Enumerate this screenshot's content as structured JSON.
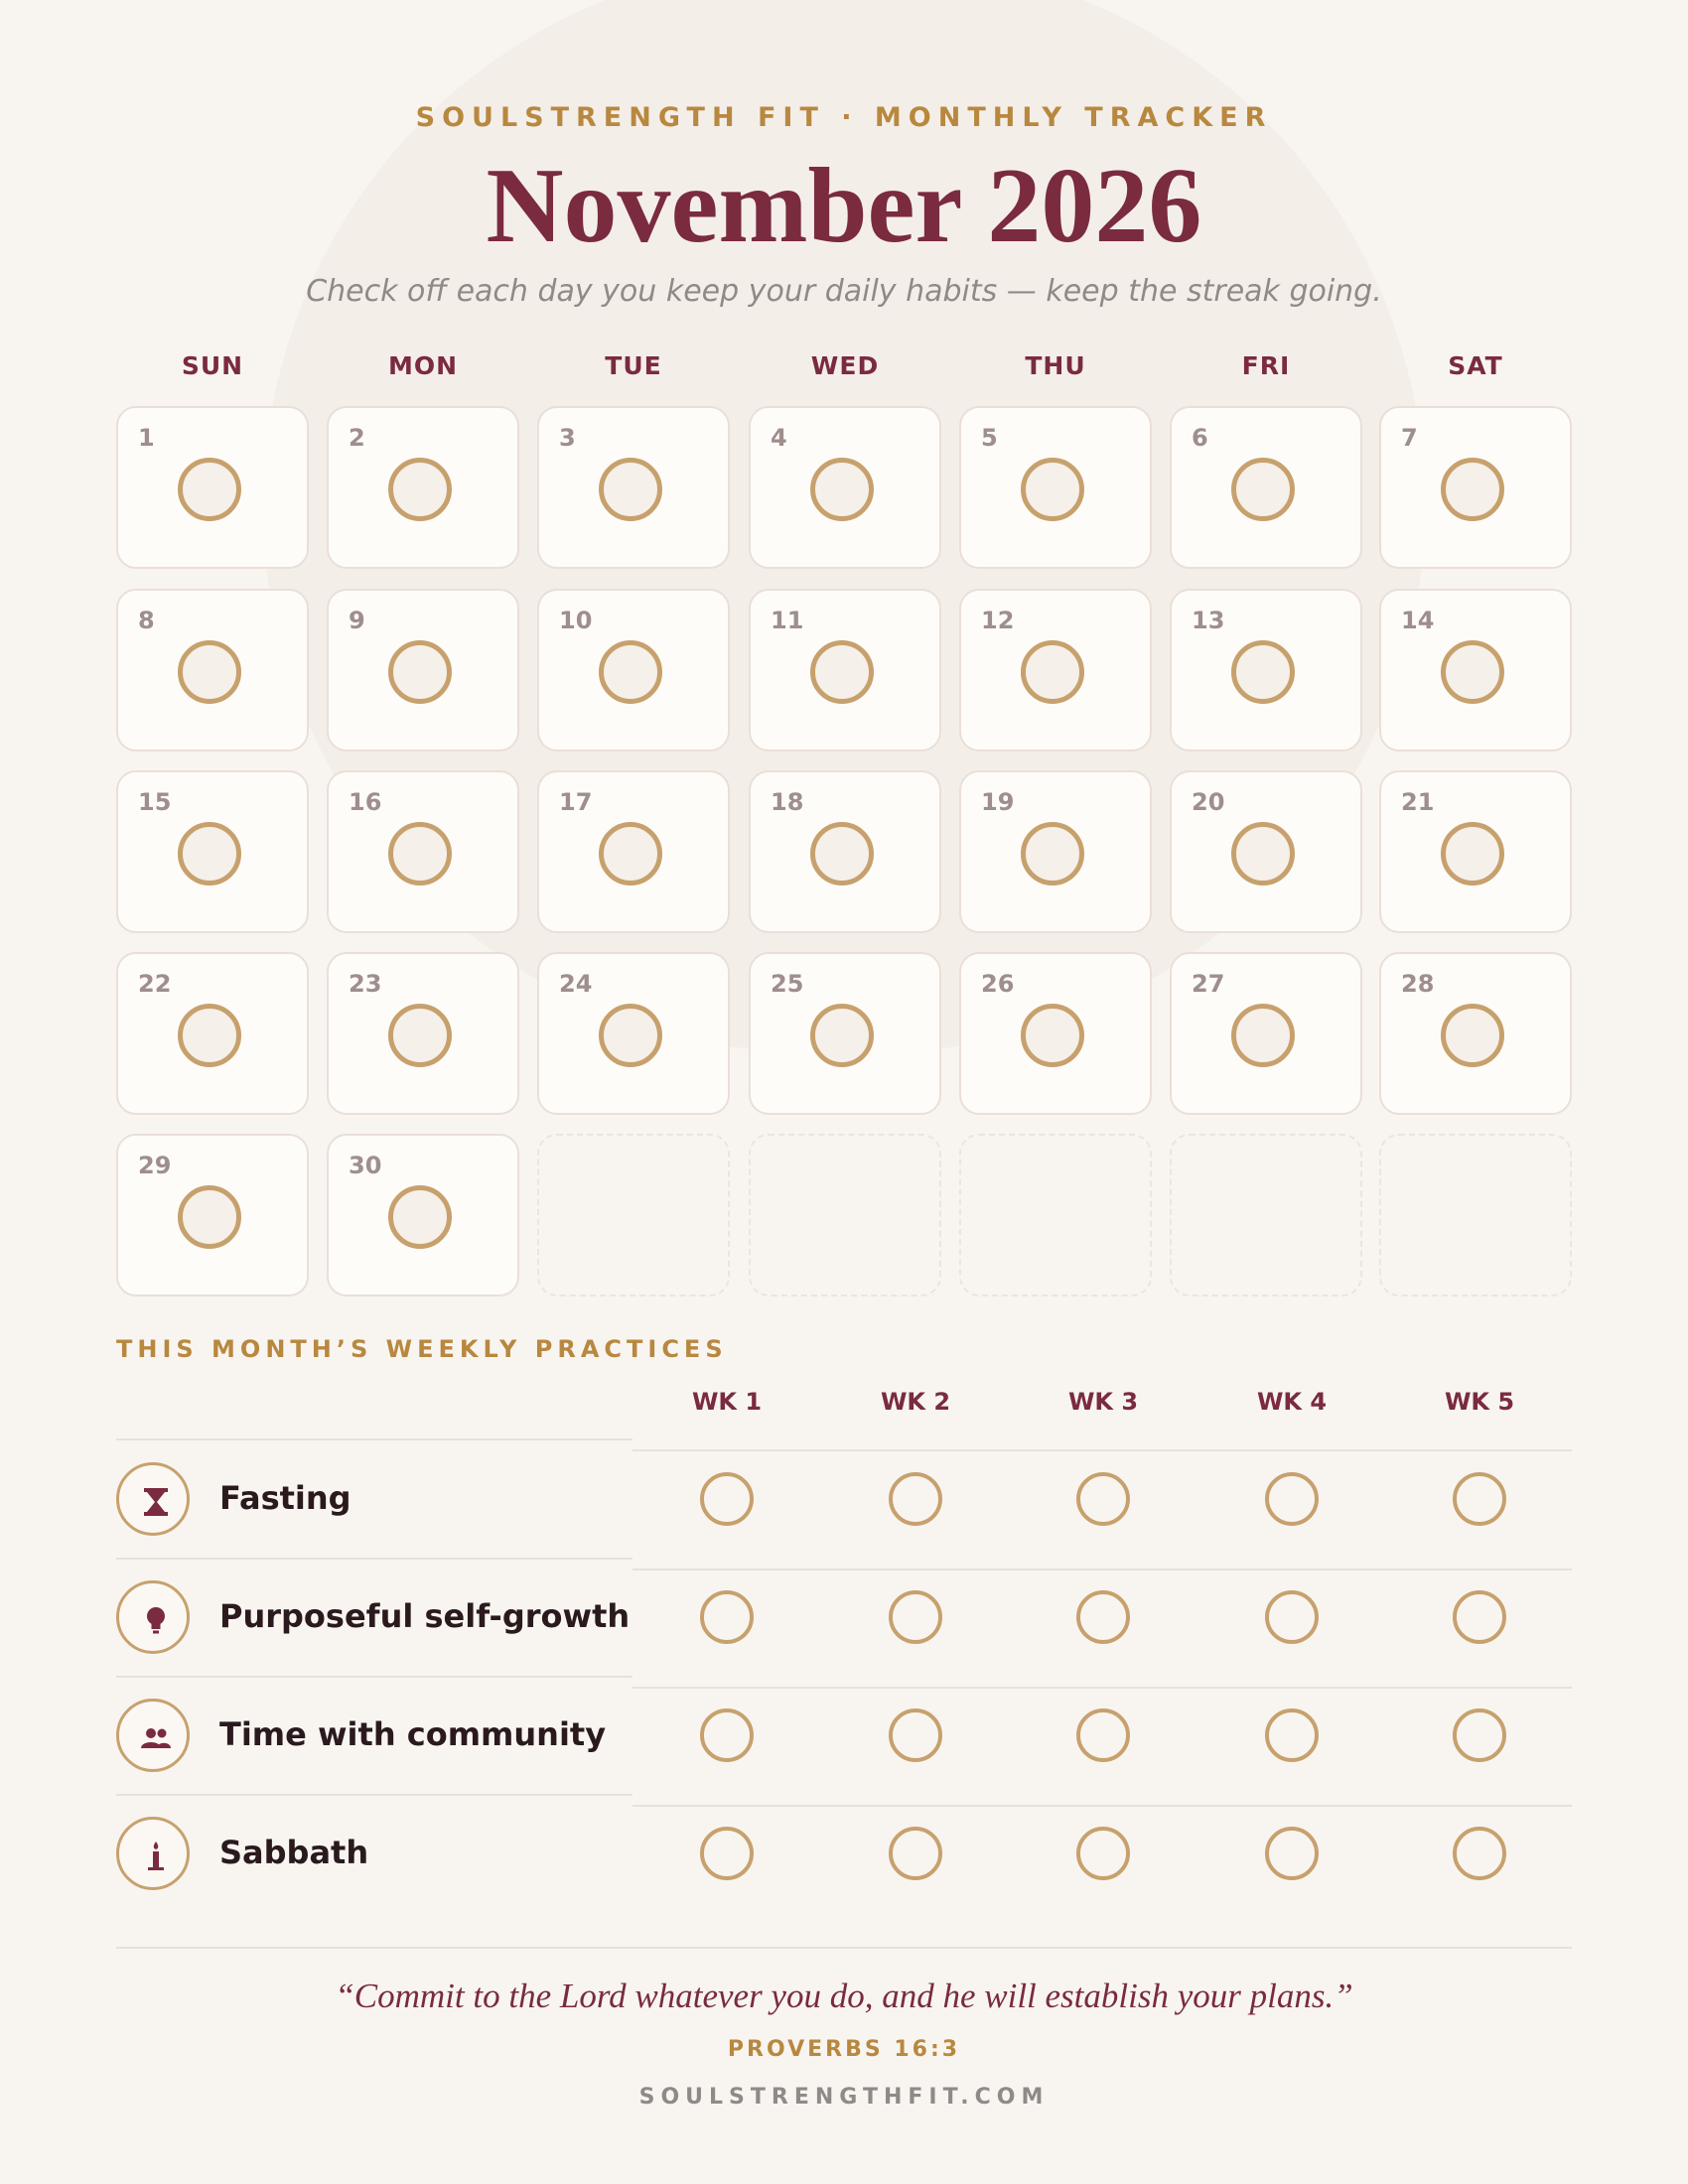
{
  "header": {
    "brand": "SOULSTRENGTH FIT · MONTHLY TRACKER",
    "month_title": "November 2026",
    "subtitle": "Check off each day you keep your daily habits — keep the streak going."
  },
  "calendar": {
    "weekdays": [
      "SUN",
      "MON",
      "TUE",
      "WED",
      "THU",
      "FRI",
      "SAT"
    ],
    "days": [
      "1",
      "2",
      "3",
      "4",
      "5",
      "6",
      "7",
      "8",
      "9",
      "10",
      "11",
      "12",
      "13",
      "14",
      "15",
      "16",
      "17",
      "18",
      "19",
      "20",
      "21",
      "22",
      "23",
      "24",
      "25",
      "26",
      "27",
      "28",
      "29",
      "30"
    ],
    "leading_empty_cells": 0,
    "trailing_empty_cells": 5
  },
  "weekly": {
    "section_title": "THIS MONTH’S WEEKLY PRACTICES",
    "weeks": [
      "WK 1",
      "WK 2",
      "WK 3",
      "WK 4",
      "WK 5"
    ],
    "practices": [
      {
        "name": "Fasting",
        "icon": "hourglass-icon"
      },
      {
        "name": "Purposeful self-growth",
        "icon": "lightbulb-icon"
      },
      {
        "name": "Time with community",
        "icon": "people-icon"
      },
      {
        "name": "Sabbath",
        "icon": "candle-icon"
      }
    ]
  },
  "footer": {
    "quote": "“Commit to the Lord whatever you do, and he will establish your plans.”",
    "reference": "PROVERBS 16:3",
    "site": "SOULSTRENGTHFIT.COM"
  },
  "colors": {
    "background": "#f8f5f1",
    "accent_maroon": "#7a2b3e",
    "accent_gold": "#b8883f",
    "circle_gold": "#c7a16d"
  }
}
